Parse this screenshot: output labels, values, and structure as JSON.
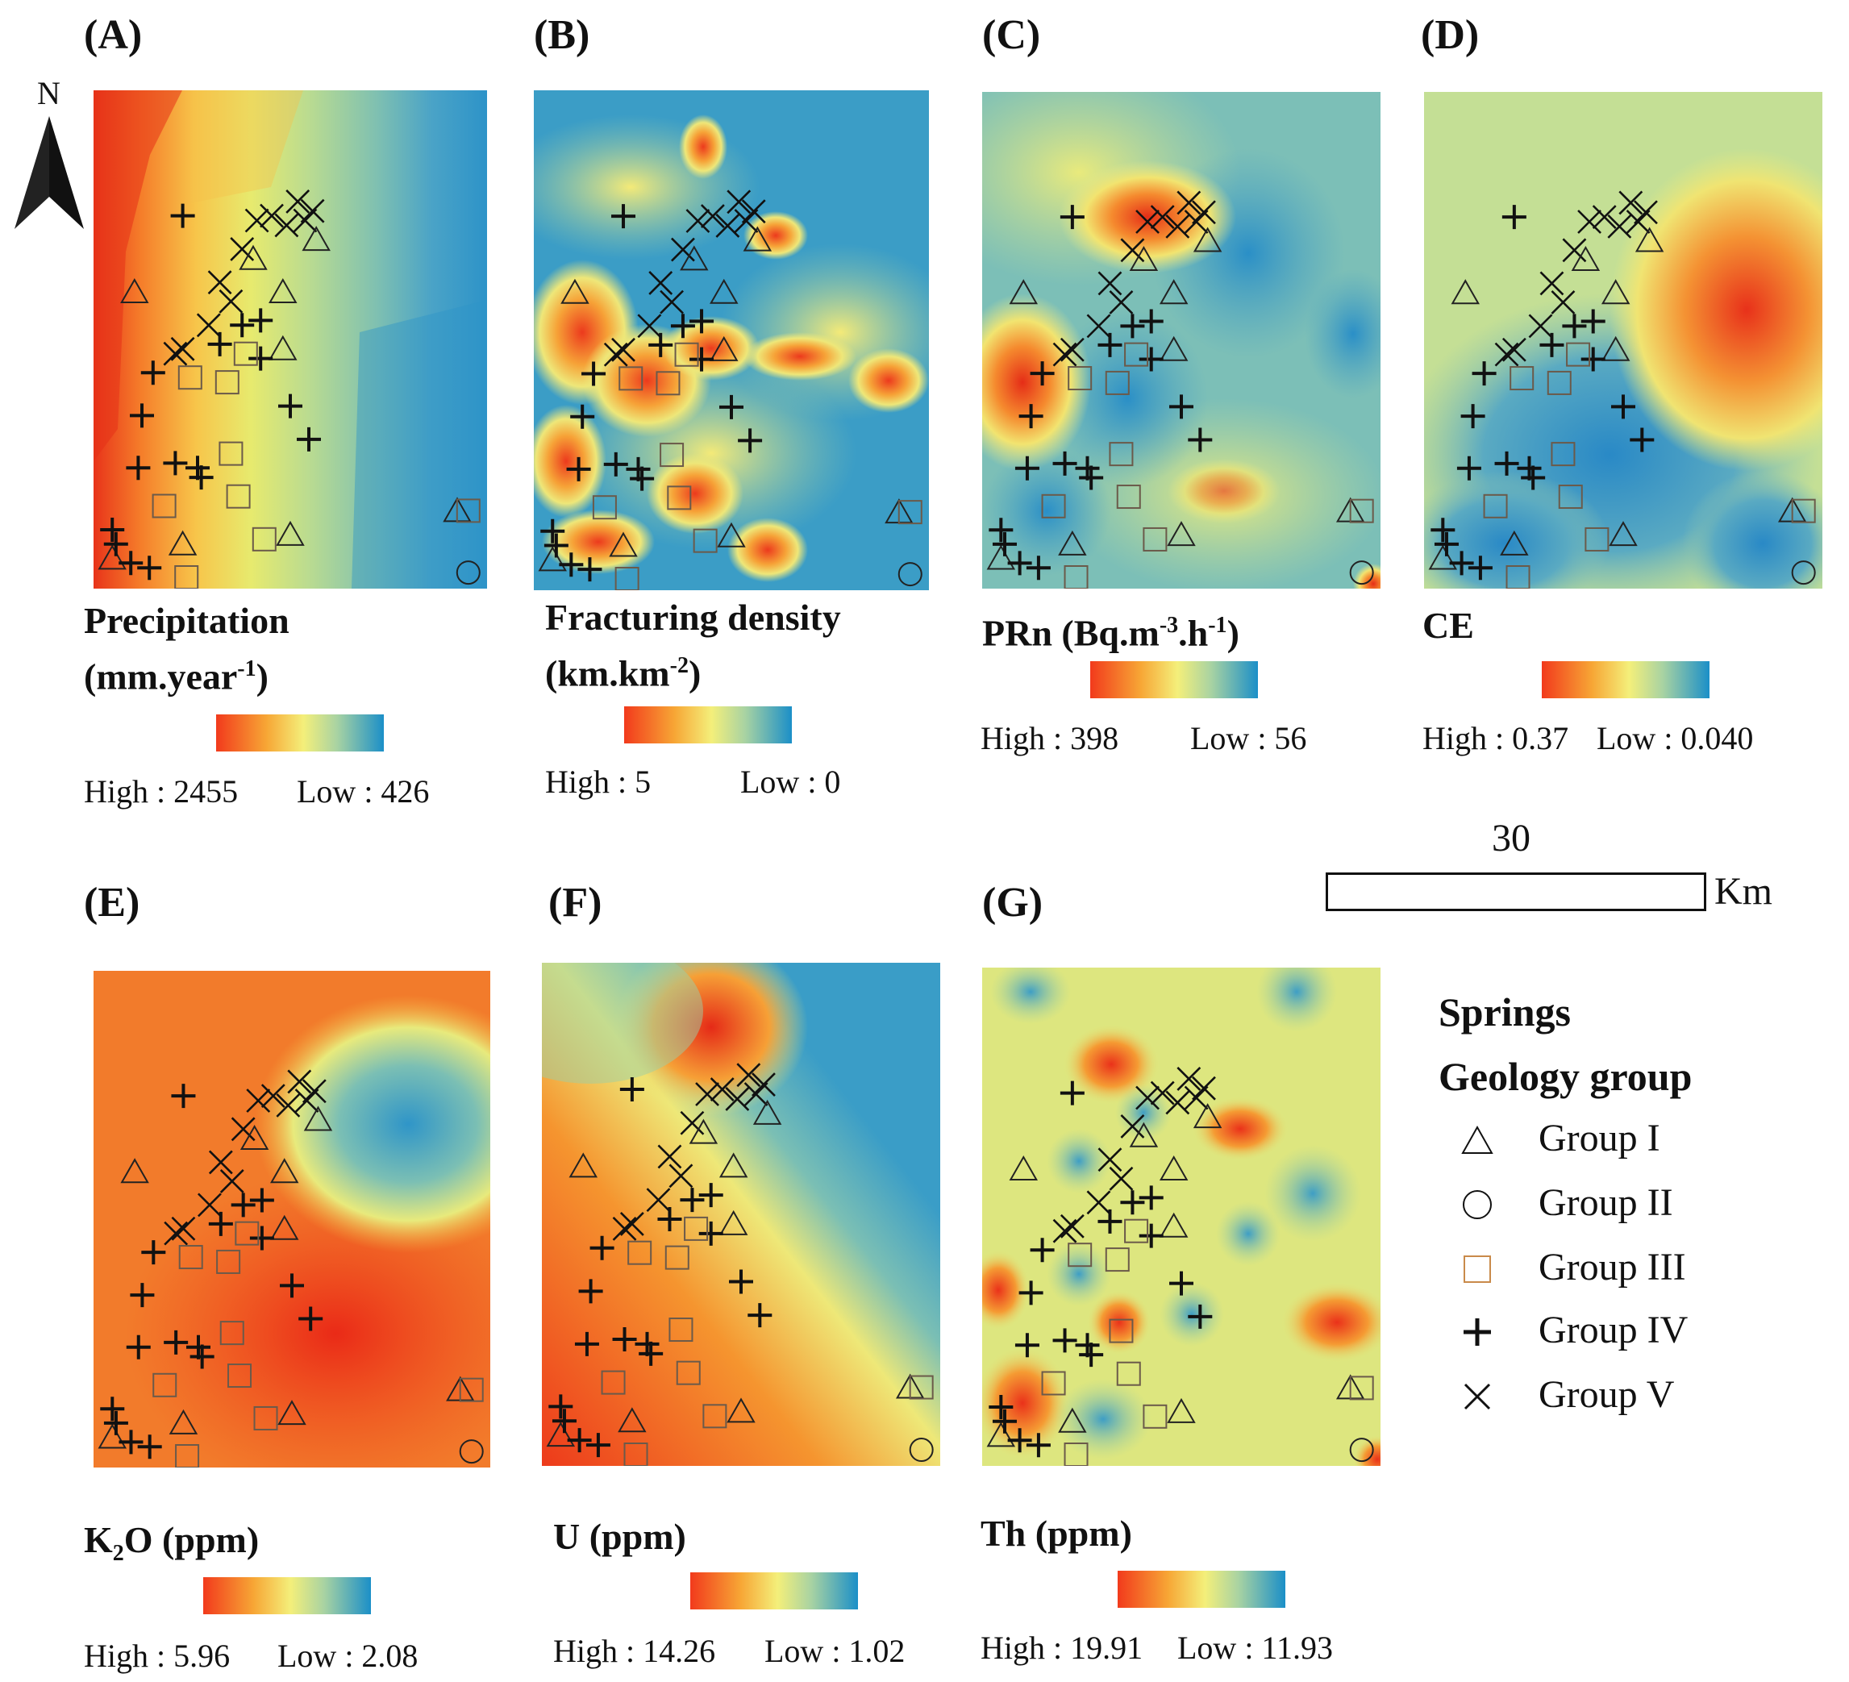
{
  "north_label": "N",
  "scale": {
    "distance": "30",
    "unit": "Km"
  },
  "legend": {
    "title": "Springs",
    "subtitle": "Geology group",
    "items": [
      {
        "symbol": "triangle",
        "label": "Group I"
      },
      {
        "symbol": "circle",
        "label": "Group II"
      },
      {
        "symbol": "square",
        "label": "Group III"
      },
      {
        "symbol": "plus",
        "label": "Group IV"
      },
      {
        "symbol": "cross",
        "label": "Group V"
      }
    ]
  },
  "ramp_colors": {
    "high": "#f23a1c",
    "mid": "#f4ef7a",
    "low": "#1b8fc8"
  },
  "panels": [
    {
      "id": "A",
      "label": "(A)",
      "title_main": "Precipitation",
      "title_line2": "(mm.year",
      "title_sup": "-1",
      "title_end": ")",
      "high": "High : 2455",
      "low": "Low : 426"
    },
    {
      "id": "B",
      "label": "(B)",
      "title_main": "Fracturing density",
      "title_line2": "(km.km",
      "title_sup": "-2",
      "title_end": ")",
      "high": "High : 5",
      "low": "Low : 0"
    },
    {
      "id": "C",
      "label": "(C)",
      "title_main": "PRn (Bq.m",
      "title_sup": "-3",
      "title_mid": ".h",
      "title_sup2": "-1",
      "title_end": ")",
      "high": "High : 398",
      "low": "Low : 56"
    },
    {
      "id": "D",
      "label": "(D)",
      "title_main": "CE",
      "high": "High : 0.37",
      "low": "Low : 0.040"
    },
    {
      "id": "E",
      "label": "(E)",
      "title_main": "K",
      "title_sub": "2",
      "title_end": "O (ppm)",
      "high": "High : 5.96",
      "low": "Low : 2.08"
    },
    {
      "id": "F",
      "label": "(F)",
      "title_main": "U (ppm)",
      "high": "High : 14.26",
      "low": "Low : 1.02"
    },
    {
      "id": "G",
      "label": "(G)",
      "title_main": "Th (ppm)",
      "high": "High : 19.91",
      "low": "Low : 11.93"
    }
  ],
  "springs": [
    {
      "g": 4,
      "u": 0.21,
      "v": 0.24
    },
    {
      "g": 5,
      "u": 0.37,
      "v": 0.31
    },
    {
      "g": 5,
      "u": 0.41,
      "v": 0.25
    },
    {
      "g": 5,
      "u": 0.45,
      "v": 0.24
    },
    {
      "g": 5,
      "u": 0.49,
      "v": 0.26
    },
    {
      "g": 5,
      "u": 0.52,
      "v": 0.21
    },
    {
      "g": 5,
      "u": 0.54,
      "v": 0.25
    },
    {
      "g": 5,
      "u": 0.56,
      "v": 0.23
    },
    {
      "g": 5,
      "u": 0.31,
      "v": 0.38
    },
    {
      "g": 5,
      "u": 0.28,
      "v": 0.47
    },
    {
      "g": 5,
      "u": 0.21,
      "v": 0.52
    },
    {
      "g": 5,
      "u": 0.19,
      "v": 0.53
    },
    {
      "g": 5,
      "u": 0.34,
      "v": 0.42
    },
    {
      "g": 1,
      "u": 0.4,
      "v": 0.33
    },
    {
      "g": 1,
      "u": 0.57,
      "v": 0.29
    },
    {
      "g": 1,
      "u": 0.08,
      "v": 0.4
    },
    {
      "g": 1,
      "u": 0.48,
      "v": 0.4
    },
    {
      "g": 1,
      "u": 0.48,
      "v": 0.52
    },
    {
      "g": 1,
      "u": 0.02,
      "v": 0.96
    },
    {
      "g": 1,
      "u": 0.21,
      "v": 0.93
    },
    {
      "g": 1,
      "u": 0.5,
      "v": 0.91
    },
    {
      "g": 1,
      "u": 0.95,
      "v": 0.86
    },
    {
      "g": 4,
      "u": 0.37,
      "v": 0.47
    },
    {
      "g": 4,
      "u": 0.42,
      "v": 0.46
    },
    {
      "g": 4,
      "u": 0.31,
      "v": 0.51
    },
    {
      "g": 4,
      "u": 0.42,
      "v": 0.54
    },
    {
      "g": 4,
      "u": 0.13,
      "v": 0.57
    },
    {
      "g": 4,
      "u": 0.1,
      "v": 0.66
    },
    {
      "g": 4,
      "u": 0.5,
      "v": 0.64
    },
    {
      "g": 4,
      "u": 0.55,
      "v": 0.71
    },
    {
      "g": 4,
      "u": 0.09,
      "v": 0.77
    },
    {
      "g": 4,
      "u": 0.19,
      "v": 0.76
    },
    {
      "g": 4,
      "u": 0.25,
      "v": 0.77
    },
    {
      "g": 4,
      "u": 0.26,
      "v": 0.79
    },
    {
      "g": 4,
      "u": 0.02,
      "v": 0.9
    },
    {
      "g": 4,
      "u": 0.03,
      "v": 0.93
    },
    {
      "g": 4,
      "u": 0.07,
      "v": 0.97
    },
    {
      "g": 4,
      "u": 0.12,
      "v": 0.98
    },
    {
      "g": 3,
      "u": 0.23,
      "v": 0.58
    },
    {
      "g": 3,
      "u": 0.33,
      "v": 0.59
    },
    {
      "g": 3,
      "u": 0.38,
      "v": 0.53
    },
    {
      "g": 3,
      "u": 0.34,
      "v": 0.74
    },
    {
      "g": 3,
      "u": 0.16,
      "v": 0.85
    },
    {
      "g": 3,
      "u": 0.36,
      "v": 0.83
    },
    {
      "g": 3,
      "u": 0.22,
      "v": 1.0
    },
    {
      "g": 3,
      "u": 0.43,
      "v": 0.92
    },
    {
      "g": 3,
      "u": 0.98,
      "v": 0.86
    },
    {
      "g": 2,
      "u": 0.98,
      "v": 0.99
    }
  ]
}
